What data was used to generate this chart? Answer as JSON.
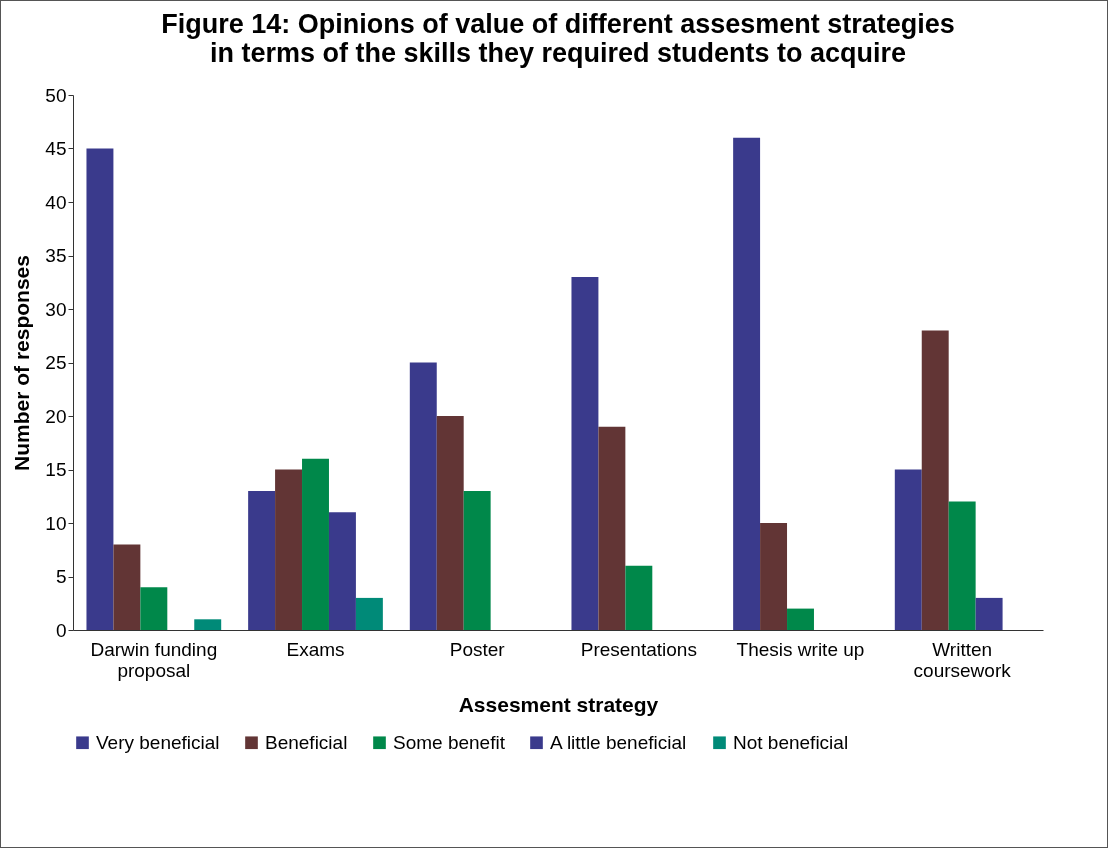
{
  "chart_data": {
    "type": "bar",
    "title": "Figure 14: Opinions of value of different assesment strategies in terms of the skills they required students to acquire",
    "xlabel": "Assesment strategy",
    "ylabel": "Number of responses",
    "categories": [
      "Darwin funding proposal",
      "Exams",
      "Poster",
      "Presentations",
      "Thesis write up",
      "Written coursework"
    ],
    "series": [
      {
        "name": "Very beneficial",
        "color": "#3a3a8c",
        "values": [
          45,
          13,
          25,
          33,
          46,
          15
        ]
      },
      {
        "name": "Beneficial",
        "color": "#623535",
        "values": [
          8,
          15,
          20,
          19,
          10,
          28
        ]
      },
      {
        "name": "Some benefit",
        "color": "#00884a",
        "values": [
          4,
          16,
          13,
          6,
          2,
          12
        ]
      },
      {
        "name": "A little beneficial",
        "color": "#3a3a8c",
        "values": [
          null,
          11,
          null,
          null,
          null,
          3
        ]
      },
      {
        "name": "Not beneficial",
        "color": "#008a78",
        "values": [
          1,
          3,
          null,
          null,
          null,
          null
        ]
      }
    ],
    "ylim": [
      0,
      50
    ],
    "yticks": [
      0,
      5,
      10,
      15,
      20,
      25,
      30,
      35,
      40,
      45,
      50
    ],
    "grid": false,
    "legend": "bottom"
  }
}
